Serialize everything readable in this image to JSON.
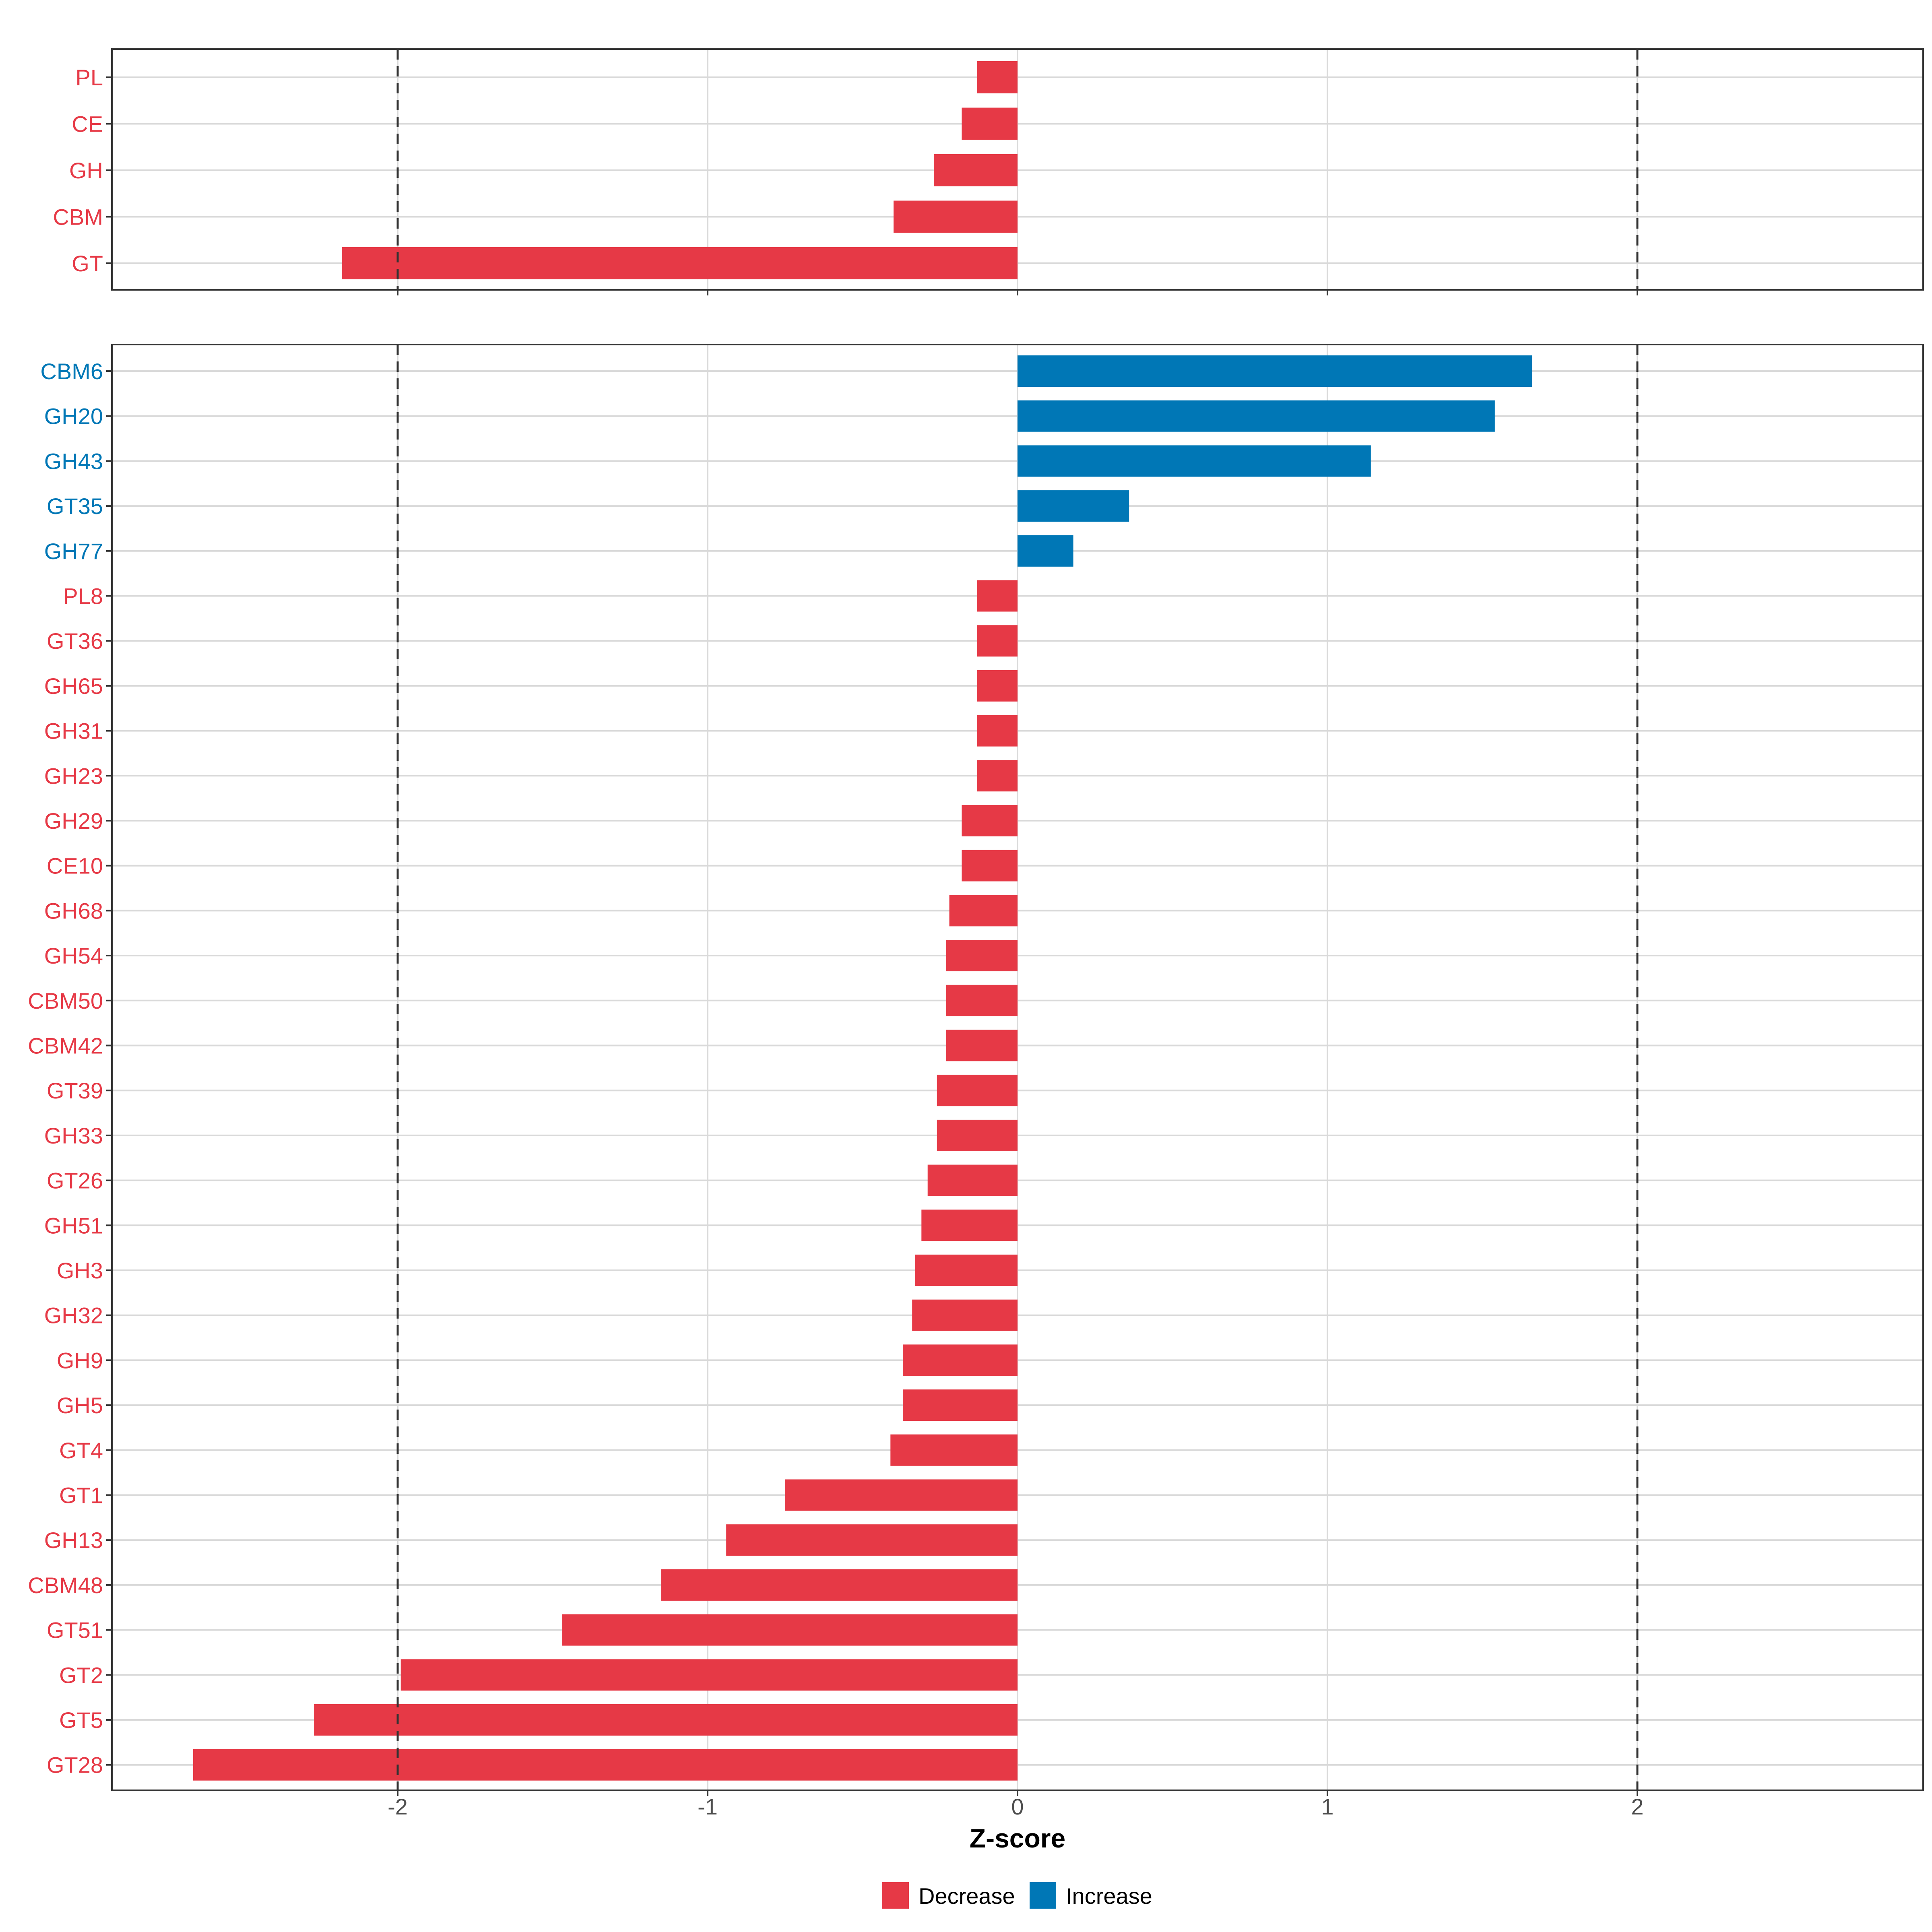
{
  "chart_data": [
    {
      "type": "bar",
      "orientation": "horizontal",
      "panel": "top",
      "categories": [
        "PL",
        "CE",
        "GH",
        "CBM",
        "GT"
      ],
      "values": [
        -0.13,
        -0.18,
        -0.27,
        -0.4,
        -2.18
      ],
      "directions": [
        "Decrease",
        "Decrease",
        "Decrease",
        "Decrease",
        "Decrease"
      ],
      "xlim": [
        -2.92,
        2.92
      ],
      "reference_lines": [
        -2,
        2
      ],
      "grid": true
    },
    {
      "type": "bar",
      "orientation": "horizontal",
      "panel": "bottom",
      "categories": [
        "CBM6",
        "GH20",
        "GH43",
        "GT35",
        "GH77",
        "PL8",
        "GT36",
        "GH65",
        "GH31",
        "GH23",
        "GH29",
        "CE10",
        "GH68",
        "GH54",
        "CBM50",
        "CBM42",
        "GT39",
        "GH33",
        "GT26",
        "GH51",
        "GH3",
        "GH32",
        "GH9",
        "GH5",
        "GT4",
        "GT1",
        "GH13",
        "CBM48",
        "GT51",
        "GT2",
        "GT5",
        "GT28"
      ],
      "values": [
        1.66,
        1.54,
        1.14,
        0.36,
        0.18,
        -0.13,
        -0.13,
        -0.13,
        -0.13,
        -0.13,
        -0.18,
        -0.18,
        -0.22,
        -0.23,
        -0.23,
        -0.23,
        -0.26,
        -0.26,
        -0.29,
        -0.31,
        -0.33,
        -0.34,
        -0.37,
        -0.37,
        -0.41,
        -0.75,
        -0.94,
        -1.15,
        -1.47,
        -1.99,
        -2.27,
        -2.66
      ],
      "directions": [
        "Increase",
        "Increase",
        "Increase",
        "Increase",
        "Increase",
        "Decrease",
        "Decrease",
        "Decrease",
        "Decrease",
        "Decrease",
        "Decrease",
        "Decrease",
        "Decrease",
        "Decrease",
        "Decrease",
        "Decrease",
        "Decrease",
        "Decrease",
        "Decrease",
        "Decrease",
        "Decrease",
        "Decrease",
        "Decrease",
        "Decrease",
        "Decrease",
        "Decrease",
        "Decrease",
        "Decrease",
        "Decrease",
        "Decrease",
        "Decrease",
        "Decrease"
      ],
      "xlim": [
        -2.92,
        2.92
      ],
      "reference_lines": [
        -2,
        2
      ],
      "grid": true
    }
  ],
  "axis": {
    "xlabel": "Z-score",
    "xticks": [
      -2,
      -1,
      0,
      1,
      2
    ],
    "xtick_labels": [
      "-2",
      "-1",
      "0",
      "1",
      "2"
    ]
  },
  "legend": {
    "position": "bottom",
    "items": [
      {
        "label": "Decrease",
        "color": "#e63946"
      },
      {
        "label": "Increase",
        "color": "#0077b6"
      }
    ]
  },
  "colors": {
    "Decrease": "#e63946",
    "Increase": "#0077b6",
    "grid": "#d9d9d9",
    "panel_border": "#333333",
    "reference_line": "#333333"
  }
}
